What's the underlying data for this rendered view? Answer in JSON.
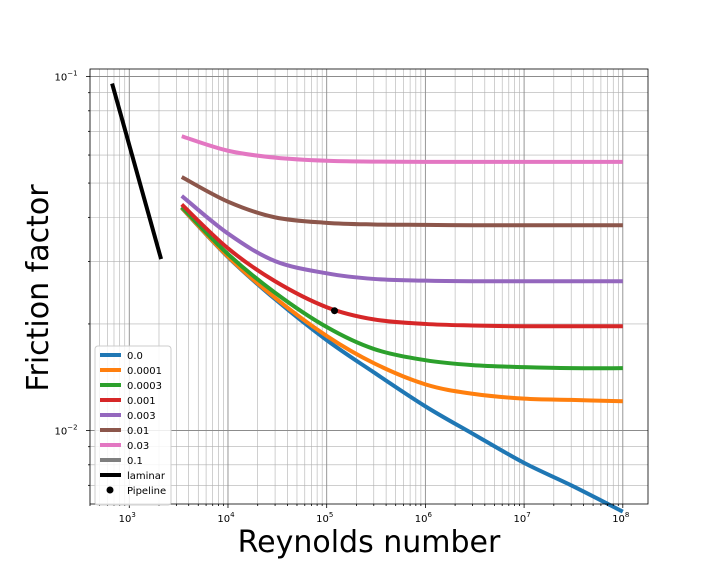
{
  "chart_data": {
    "type": "line",
    "title": "",
    "xlabel": "Reynolds number",
    "ylabel": "Friction factor",
    "xscale": "log",
    "yscale": "log",
    "xlim": [
      400,
      180000000
    ],
    "ylim": [
      0.0062,
      0.105
    ],
    "grid": "both-major-minor",
    "legend_position": "lower-left",
    "x_ticks": [
      {
        "value": 1000,
        "base": "10",
        "exp": "3"
      },
      {
        "value": 10000,
        "base": "10",
        "exp": "4"
      },
      {
        "value": 100000,
        "base": "10",
        "exp": "5"
      },
      {
        "value": 1000000,
        "base": "10",
        "exp": "6"
      },
      {
        "value": 10000000,
        "base": "10",
        "exp": "7"
      },
      {
        "value": 100000000,
        "base": "10",
        "exp": "8"
      }
    ],
    "y_ticks": [
      {
        "value": 0.01,
        "base": "10",
        "exp": "−2"
      },
      {
        "value": 0.1,
        "base": "10",
        "exp": "−1"
      }
    ],
    "series": [
      {
        "name": "0.0",
        "color": "#1f77b4",
        "x": [
          3400,
          10000,
          30000,
          100000,
          300000,
          1000000,
          3000000,
          10000000,
          30000000,
          100000000
        ],
        "y": [
          0.0425,
          0.0309,
          0.0235,
          0.018,
          0.0146,
          0.0117,
          0.0098,
          0.0081,
          0.007,
          0.0059
        ]
      },
      {
        "name": "0.0001",
        "color": "#ff7f0e",
        "x": [
          3400,
          10000,
          30000,
          100000,
          300000,
          1000000,
          3000000,
          10000000,
          30000000,
          100000000
        ],
        "y": [
          0.0426,
          0.031,
          0.0237,
          0.0185,
          0.0155,
          0.0135,
          0.0127,
          0.0123,
          0.0122,
          0.0121
        ]
      },
      {
        "name": "0.0003",
        "color": "#2ca02c",
        "x": [
          3400,
          10000,
          30000,
          100000,
          300000,
          1000000,
          3000000,
          10000000,
          30000000,
          100000000
        ],
        "y": [
          0.0428,
          0.0315,
          0.0245,
          0.0196,
          0.017,
          0.0158,
          0.0153,
          0.0151,
          0.015,
          0.015
        ]
      },
      {
        "name": "0.001",
        "color": "#d62728",
        "x": [
          3400,
          10000,
          30000,
          100000,
          300000,
          1000000,
          3000000,
          10000000,
          30000000,
          100000000
        ],
        "y": [
          0.0435,
          0.0327,
          0.0264,
          0.0223,
          0.0206,
          0.02,
          0.0198,
          0.0197,
          0.0197,
          0.0197
        ]
      },
      {
        "name": "0.003",
        "color": "#9467bd",
        "x": [
          3400,
          10000,
          30000,
          100000,
          300000,
          1000000,
          3000000,
          10000000,
          30000000,
          100000000
        ],
        "y": [
          0.046,
          0.036,
          0.0301,
          0.0278,
          0.0268,
          0.0265,
          0.0264,
          0.0264,
          0.0264,
          0.0264
        ]
      },
      {
        "name": "0.01",
        "color": "#8c564b",
        "x": [
          3400,
          10000,
          30000,
          100000,
          300000,
          1000000,
          3000000,
          10000000,
          30000000,
          100000000
        ],
        "y": [
          0.052,
          0.0443,
          0.04,
          0.0386,
          0.0382,
          0.0381,
          0.038,
          0.038,
          0.038,
          0.038
        ]
      },
      {
        "name": "0.03",
        "color": "#e377c2",
        "x": [
          3400,
          10000,
          30000,
          100000,
          300000,
          1000000,
          3000000,
          10000000,
          30000000,
          100000000
        ],
        "y": [
          0.0678,
          0.0617,
          0.059,
          0.0578,
          0.0575,
          0.0574,
          0.0574,
          0.0574,
          0.0574,
          0.0574
        ]
      },
      {
        "name": "0.1",
        "color": "#7f7f7f",
        "x": [],
        "y": []
      },
      {
        "name": "laminar",
        "color": "#000000",
        "x": [
          670,
          2100
        ],
        "y": [
          0.0955,
          0.0305
        ]
      }
    ],
    "points": [
      {
        "name": "Pipeline",
        "color": "#000000",
        "x": 120000,
        "y": 0.0218
      }
    ]
  }
}
